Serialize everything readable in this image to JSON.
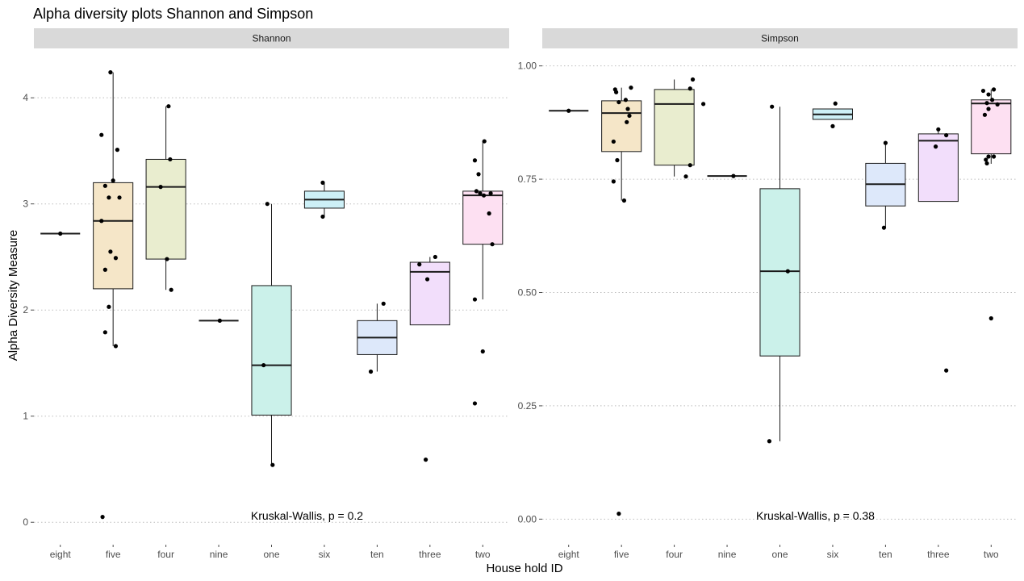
{
  "title": "Alpha diversity plots Shannon and Simpson",
  "xlabel": "House hold ID",
  "ylabel": "Alpha Diversity Measure",
  "fill_colors": {
    "eight": "#f2f2f2",
    "five": "#f5e6c8",
    "four": "#e9edcf",
    "nine": "#f2f2f2",
    "one": "#cbf1ea",
    "six": "#cdf0f7",
    "ten": "#dde8fa",
    "three": "#f2defb",
    "two": "#fde0f2"
  },
  "chart_data": [
    {
      "type": "box",
      "panel": "Shannon",
      "categories": [
        "eight",
        "five",
        "four",
        "nine",
        "one",
        "six",
        "ten",
        "three",
        "two"
      ],
      "ylim": [
        -0.12,
        4.45
      ],
      "yticks": [
        0,
        1,
        2,
        3,
        4
      ],
      "ytick_labels": [
        "0",
        "1",
        "2",
        "3",
        "4"
      ],
      "grid": true,
      "annotation": "Kruskal-Wallis, p = 0.2",
      "boxes": [
        {
          "category": "eight",
          "q1": 2.72,
          "median": 2.72,
          "q3": 2.72,
          "lower": 2.72,
          "upper": 2.72
        },
        {
          "category": "five",
          "q1": 2.2,
          "median": 2.84,
          "q3": 3.2,
          "lower": 1.66,
          "upper": 4.24
        },
        {
          "category": "four",
          "q1": 2.48,
          "median": 3.16,
          "q3": 3.42,
          "lower": 2.19,
          "upper": 3.92
        },
        {
          "category": "nine",
          "q1": 1.9,
          "median": 1.9,
          "q3": 1.9,
          "lower": 1.9,
          "upper": 1.9
        },
        {
          "category": "one",
          "q1": 1.01,
          "median": 1.48,
          "q3": 2.23,
          "lower": 0.53,
          "upper": 3.0
        },
        {
          "category": "six",
          "q1": 2.96,
          "median": 3.04,
          "q3": 3.12,
          "lower": 2.88,
          "upper": 3.2
        },
        {
          "category": "ten",
          "q1": 1.58,
          "median": 1.74,
          "q3": 1.9,
          "lower": 1.42,
          "upper": 2.06
        },
        {
          "category": "three",
          "q1": 1.86,
          "median": 2.36,
          "q3": 2.45,
          "lower": 1.86,
          "upper": 2.5
        },
        {
          "category": "two",
          "q1": 2.62,
          "median": 3.08,
          "q3": 3.12,
          "lower": 2.1,
          "upper": 3.59
        }
      ],
      "points": [
        {
          "category": "eight",
          "offset": 0,
          "y": 2.72
        },
        {
          "category": "five",
          "offset": -0.22,
          "y": 3.65
        },
        {
          "category": "five",
          "offset": -0.05,
          "y": 4.24
        },
        {
          "category": "five",
          "offset": 0.08,
          "y": 3.51
        },
        {
          "category": "five",
          "offset": 0.0,
          "y": 3.22
        },
        {
          "category": "five",
          "offset": -0.15,
          "y": 3.17
        },
        {
          "category": "five",
          "offset": -0.08,
          "y": 3.06
        },
        {
          "category": "five",
          "offset": 0.12,
          "y": 3.06
        },
        {
          "category": "five",
          "offset": -0.22,
          "y": 2.84
        },
        {
          "category": "five",
          "offset": -0.05,
          "y": 2.55
        },
        {
          "category": "five",
          "offset": 0.05,
          "y": 2.49
        },
        {
          "category": "five",
          "offset": -0.15,
          "y": 2.38
        },
        {
          "category": "five",
          "offset": -0.08,
          "y": 2.03
        },
        {
          "category": "five",
          "offset": -0.15,
          "y": 1.79
        },
        {
          "category": "five",
          "offset": 0.05,
          "y": 1.66
        },
        {
          "category": "five",
          "offset": -0.2,
          "y": 0.05
        },
        {
          "category": "four",
          "offset": 0.05,
          "y": 3.92
        },
        {
          "category": "four",
          "offset": 0.08,
          "y": 3.42
        },
        {
          "category": "four",
          "offset": -0.1,
          "y": 3.16
        },
        {
          "category": "four",
          "offset": 0.02,
          "y": 2.48
        },
        {
          "category": "four",
          "offset": 0.1,
          "y": 2.19
        },
        {
          "category": "nine",
          "offset": 0.02,
          "y": 1.9
        },
        {
          "category": "one",
          "offset": -0.08,
          "y": 3.0
        },
        {
          "category": "one",
          "offset": -0.15,
          "y": 1.48
        },
        {
          "category": "one",
          "offset": 0.02,
          "y": 0.54
        },
        {
          "category": "six",
          "offset": -0.03,
          "y": 3.2
        },
        {
          "category": "six",
          "offset": -0.03,
          "y": 2.88
        },
        {
          "category": "ten",
          "offset": 0.12,
          "y": 2.06
        },
        {
          "category": "ten",
          "offset": -0.12,
          "y": 1.42
        },
        {
          "category": "three",
          "offset": -0.2,
          "y": 2.43
        },
        {
          "category": "three",
          "offset": 0.1,
          "y": 2.5
        },
        {
          "category": "three",
          "offset": -0.05,
          "y": 2.29
        },
        {
          "category": "three",
          "offset": -0.08,
          "y": 0.59
        },
        {
          "category": "two",
          "offset": -0.15,
          "y": 3.41
        },
        {
          "category": "two",
          "offset": 0.03,
          "y": 3.59
        },
        {
          "category": "two",
          "offset": -0.08,
          "y": 3.28
        },
        {
          "category": "two",
          "offset": -0.12,
          "y": 3.12
        },
        {
          "category": "two",
          "offset": -0.05,
          "y": 3.1
        },
        {
          "category": "two",
          "offset": 0.02,
          "y": 3.08
        },
        {
          "category": "two",
          "offset": 0.15,
          "y": 3.1
        },
        {
          "category": "two",
          "offset": 0.12,
          "y": 2.91
        },
        {
          "category": "two",
          "offset": 0.18,
          "y": 2.62
        },
        {
          "category": "two",
          "offset": -0.15,
          "y": 2.1
        },
        {
          "category": "two",
          "offset": 0.0,
          "y": 1.61
        },
        {
          "category": "two",
          "offset": -0.15,
          "y": 1.12
        }
      ]
    },
    {
      "type": "box",
      "panel": "Simpson",
      "categories": [
        "eight",
        "five",
        "four",
        "nine",
        "one",
        "six",
        "ten",
        "three",
        "two"
      ],
      "ylim": [
        -0.035,
        1.035
      ],
      "yticks": [
        0,
        0.25,
        0.5,
        0.75,
        1.0
      ],
      "ytick_labels": [
        "0.00",
        "0.25",
        "0.50",
        "0.75",
        "1.00"
      ],
      "grid": true,
      "annotation": "Kruskal-Wallis, p = 0.38",
      "boxes": [
        {
          "category": "eight",
          "q1": 0.901,
          "median": 0.901,
          "q3": 0.901,
          "lower": 0.901,
          "upper": 0.901
        },
        {
          "category": "five",
          "q1": 0.811,
          "median": 0.896,
          "q3": 0.923,
          "lower": 0.703,
          "upper": 0.952
        },
        {
          "category": "four",
          "q1": 0.781,
          "median": 0.916,
          "q3": 0.948,
          "lower": 0.756,
          "upper": 0.97
        },
        {
          "category": "nine",
          "q1": 0.757,
          "median": 0.757,
          "q3": 0.757,
          "lower": 0.757,
          "upper": 0.757
        },
        {
          "category": "one",
          "q1": 0.36,
          "median": 0.547,
          "q3": 0.729,
          "lower": 0.172,
          "upper": 0.91
        },
        {
          "category": "six",
          "q1": 0.882,
          "median": 0.893,
          "q3": 0.905,
          "lower": 0.882,
          "upper": 0.905
        },
        {
          "category": "ten",
          "q1": 0.691,
          "median": 0.739,
          "q3": 0.785,
          "lower": 0.643,
          "upper": 0.83
        },
        {
          "category": "three",
          "q1": 0.701,
          "median": 0.835,
          "q3": 0.85,
          "lower": 0.701,
          "upper": 0.86
        },
        {
          "category": "two",
          "q1": 0.806,
          "median": 0.917,
          "q3": 0.925,
          "lower": 0.784,
          "upper": 0.948
        }
      ],
      "points": [
        {
          "category": "eight",
          "offset": 0.0,
          "y": 0.901
        },
        {
          "category": "five",
          "offset": -0.12,
          "y": 0.948
        },
        {
          "category": "five",
          "offset": -0.1,
          "y": 0.942
        },
        {
          "category": "five",
          "offset": 0.18,
          "y": 0.952
        },
        {
          "category": "five",
          "offset": 0.08,
          "y": 0.925
        },
        {
          "category": "five",
          "offset": -0.05,
          "y": 0.92
        },
        {
          "category": "five",
          "offset": 0.12,
          "y": 0.905
        },
        {
          "category": "five",
          "offset": 0.15,
          "y": 0.89
        },
        {
          "category": "five",
          "offset": 0.1,
          "y": 0.876
        },
        {
          "category": "five",
          "offset": -0.15,
          "y": 0.833
        },
        {
          "category": "five",
          "offset": -0.08,
          "y": 0.792
        },
        {
          "category": "five",
          "offset": -0.15,
          "y": 0.745
        },
        {
          "category": "five",
          "offset": 0.05,
          "y": 0.703
        },
        {
          "category": "five",
          "offset": -0.05,
          "y": 0.012
        },
        {
          "category": "four",
          "offset": 0.35,
          "y": 0.97
        },
        {
          "category": "four",
          "offset": 0.3,
          "y": 0.95
        },
        {
          "category": "four",
          "offset": 0.55,
          "y": 0.916
        },
        {
          "category": "four",
          "offset": 0.3,
          "y": 0.781
        },
        {
          "category": "four",
          "offset": 0.22,
          "y": 0.756
        },
        {
          "category": "nine",
          "offset": 0.12,
          "y": 0.757
        },
        {
          "category": "one",
          "offset": -0.15,
          "y": 0.91
        },
        {
          "category": "one",
          "offset": 0.15,
          "y": 0.547
        },
        {
          "category": "one",
          "offset": -0.2,
          "y": 0.172
        },
        {
          "category": "six",
          "offset": 0.05,
          "y": 0.917
        },
        {
          "category": "six",
          "offset": 0.0,
          "y": 0.867
        },
        {
          "category": "ten",
          "offset": 0.0,
          "y": 0.83
        },
        {
          "category": "ten",
          "offset": -0.03,
          "y": 0.643
        },
        {
          "category": "three",
          "offset": 0.0,
          "y": 0.86
        },
        {
          "category": "three",
          "offset": 0.15,
          "y": 0.847
        },
        {
          "category": "three",
          "offset": -0.05,
          "y": 0.822
        },
        {
          "category": "three",
          "offset": 0.15,
          "y": 0.328
        },
        {
          "category": "two",
          "offset": -0.15,
          "y": 0.945
        },
        {
          "category": "two",
          "offset": 0.05,
          "y": 0.948
        },
        {
          "category": "two",
          "offset": -0.05,
          "y": 0.937
        },
        {
          "category": "two",
          "offset": 0.02,
          "y": 0.925
        },
        {
          "category": "two",
          "offset": -0.08,
          "y": 0.918
        },
        {
          "category": "two",
          "offset": 0.12,
          "y": 0.915
        },
        {
          "category": "two",
          "offset": -0.05,
          "y": 0.905
        },
        {
          "category": "two",
          "offset": -0.12,
          "y": 0.892
        },
        {
          "category": "two",
          "offset": -0.05,
          "y": 0.8
        },
        {
          "category": "two",
          "offset": -0.1,
          "y": 0.793
        },
        {
          "category": "two",
          "offset": 0.05,
          "y": 0.8
        },
        {
          "category": "two",
          "offset": -0.08,
          "y": 0.785
        },
        {
          "category": "two",
          "offset": 0.0,
          "y": 0.443
        }
      ]
    }
  ]
}
